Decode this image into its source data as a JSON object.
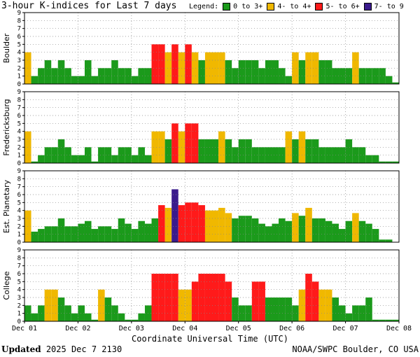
{
  "header": {
    "title": "3-hour K-indices for Last 7 days"
  },
  "legend": {
    "label": "Legend:",
    "items": [
      {
        "label": "0 to 3+",
        "color": "#1b9a1b"
      },
      {
        "label": "4- to 4+",
        "color": "#f0b800"
      },
      {
        "label": "5- to 6+",
        "color": "#ff1a1a"
      },
      {
        "label": "7- to 9",
        "color": "#3a1a8c"
      }
    ]
  },
  "chart_data": {
    "type": "bar",
    "xlabel": "Coordinate Universal Time (UTC)",
    "x_ticks": [
      "Dec 01",
      "Dec 02",
      "Dec 03",
      "Dec 04",
      "Dec 05",
      "Dec 06",
      "Dec 07",
      "Dec 08"
    ],
    "ylim": [
      0,
      9
    ],
    "y_ticks": [
      "0",
      "1",
      "2",
      "3",
      "4",
      "5",
      "6",
      "7",
      "8",
      "9"
    ],
    "grid": "dotted",
    "series": [
      {
        "name": "Boulder",
        "values": [
          4,
          1,
          2,
          3,
          2,
          3,
          2,
          1,
          1,
          3,
          1,
          2,
          2,
          3,
          2,
          2,
          1,
          2,
          2,
          5,
          5,
          4,
          5,
          4,
          5,
          4,
          3,
          4,
          4,
          4,
          3,
          2,
          3,
          3,
          3,
          2,
          3,
          3,
          2,
          1,
          4,
          3,
          4,
          4,
          3,
          3,
          2,
          2,
          2,
          4,
          2,
          2,
          2,
          2,
          1,
          0.2
        ]
      },
      {
        "name": "Fredericksburg",
        "values": [
          4,
          0.2,
          1,
          2,
          2,
          3,
          2,
          1,
          1,
          2,
          0.2,
          2,
          2,
          1,
          2,
          2,
          1,
          2,
          1,
          4,
          4,
          3,
          5,
          4,
          5,
          5,
          3,
          3,
          3,
          4,
          3,
          2,
          3,
          3,
          2,
          2,
          2,
          2,
          2,
          4,
          3,
          4,
          3,
          3,
          2,
          2,
          2,
          2,
          3,
          2,
          2,
          1,
          1,
          0.2,
          0.2,
          0.2
        ]
      },
      {
        "name": "Est. Planetary",
        "values": [
          4,
          1.33,
          1.67,
          2,
          2,
          3,
          2,
          2,
          2.33,
          2.67,
          1.67,
          2,
          2,
          1.67,
          3,
          2.33,
          1.67,
          2.67,
          2.33,
          3,
          4.67,
          4.33,
          6.67,
          4.67,
          5,
          5,
          4.67,
          4,
          4,
          4.33,
          3.67,
          3,
          3.33,
          3.33,
          3,
          2.33,
          2,
          2.33,
          3,
          2.67,
          3.67,
          3.33,
          4.33,
          3,
          3,
          2.67,
          2.33,
          1.67,
          2.67,
          3.67,
          2.67,
          2.33,
          1.67,
          0.33,
          0.33,
          0
        ]
      },
      {
        "name": "College",
        "values": [
          2,
          1,
          2,
          4,
          4,
          3,
          2,
          1,
          2,
          1,
          0.2,
          4,
          3,
          2,
          1,
          0.2,
          0.2,
          1,
          2,
          6,
          6,
          6,
          6,
          4,
          4,
          5,
          6,
          6,
          6,
          6,
          5,
          3,
          2,
          2,
          5,
          5,
          3,
          3,
          3,
          3,
          2,
          4,
          6,
          5,
          4,
          4,
          3,
          2,
          1,
          2,
          2,
          3,
          0.2,
          0.2,
          0.2,
          0.2
        ]
      }
    ]
  },
  "footer": {
    "updated_label": "Updated",
    "updated_value": "2025 Dec  7 2130",
    "source": "NOAA/SWPC Boulder, CO USA"
  }
}
